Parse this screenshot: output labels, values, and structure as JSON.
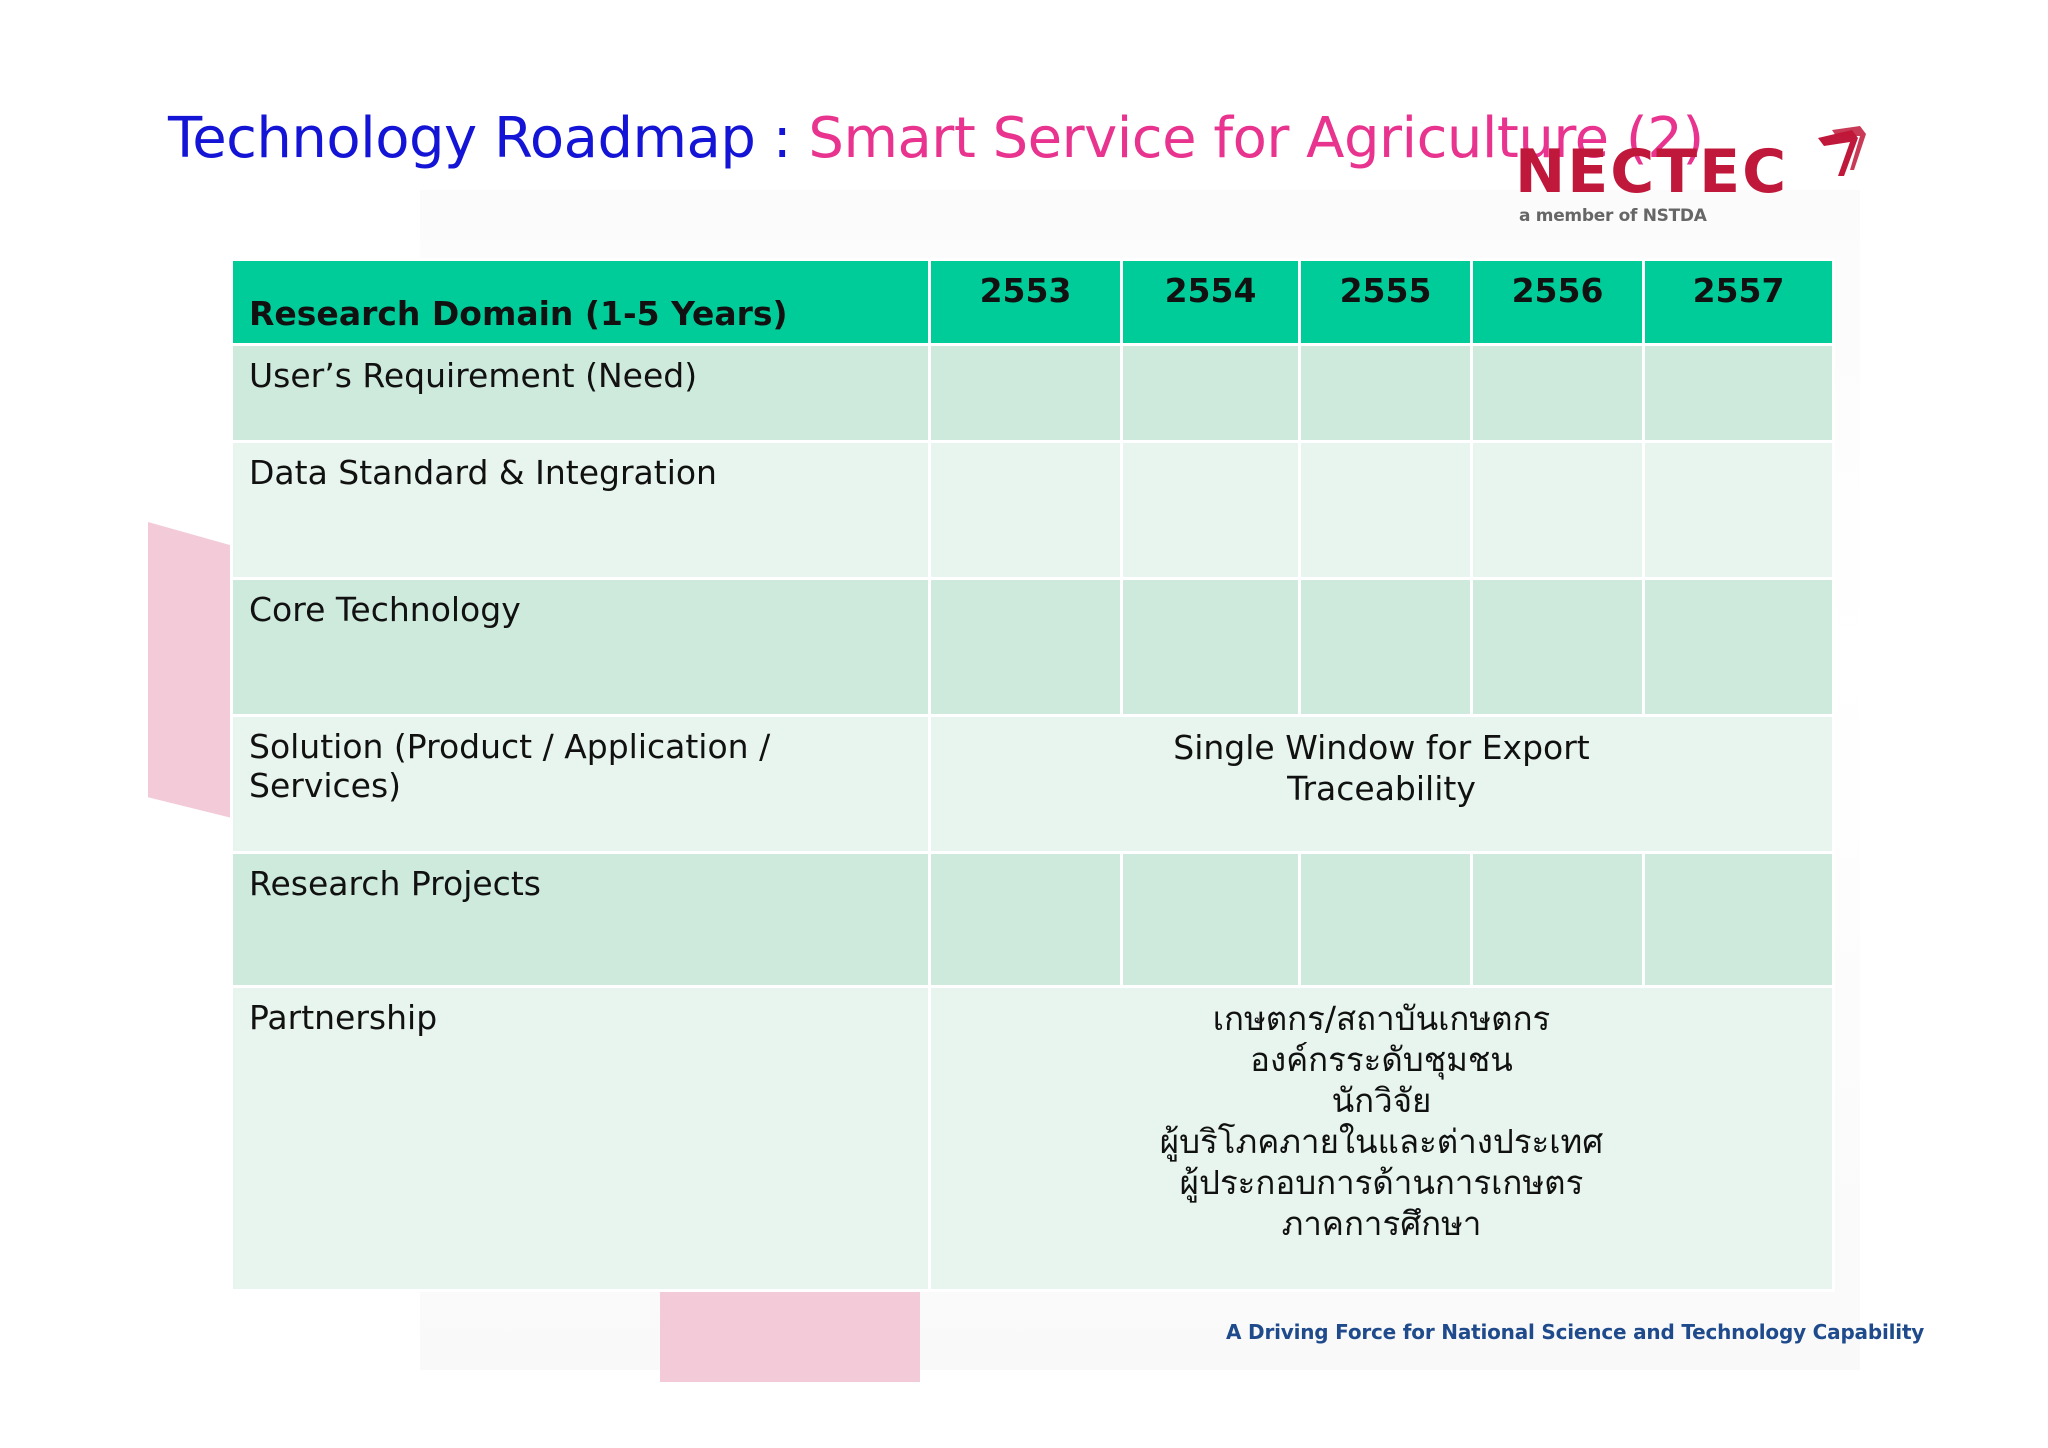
{
  "title": {
    "part1": "Technology Roadmap",
    "separator": " : ",
    "part2": "Smart Service for Agriculture (2)"
  },
  "logo": {
    "name": "NECTEC",
    "subtitle": "a member of NSTDA"
  },
  "table": {
    "header": {
      "domain": "Research Domain (1-5 Years)",
      "years": [
        "2553",
        "2554",
        "2555",
        "2556",
        "2557"
      ]
    },
    "rows": {
      "users_requirement": "User’s Requirement  (Need)",
      "data_standard": "Data Standard & Integration",
      "core_technology": "Core Technology",
      "solution": {
        "label": "Solution (Product / Application / Services)",
        "content": [
          "Single Window for Export",
          "Traceability"
        ]
      },
      "research_projects": "Research Projects",
      "partnership": {
        "label": "Partnership",
        "content": [
          "เกษตกร/สถาบันเกษตกร",
          "องค์กรระดับชุมชน",
          "นักวิจัย",
          "ผู้บริโภคภายในและต่างประเทศ",
          "ผู้ประกอบการด้านการเกษตร",
          "ภาคการศึกษา"
        ]
      }
    }
  },
  "tagline": "A Driving Force for National Science and Technology Capability",
  "colors": {
    "title_blue": "#1414d6",
    "title_pink": "#e8338f",
    "header_green": "#00cc99",
    "row_dark": "#ceeadd",
    "row_light": "#e7f5ee",
    "logo_red": "#c0183a",
    "decoration_pink": "#f2cad8",
    "tagline_blue": "#1f4b8c"
  }
}
